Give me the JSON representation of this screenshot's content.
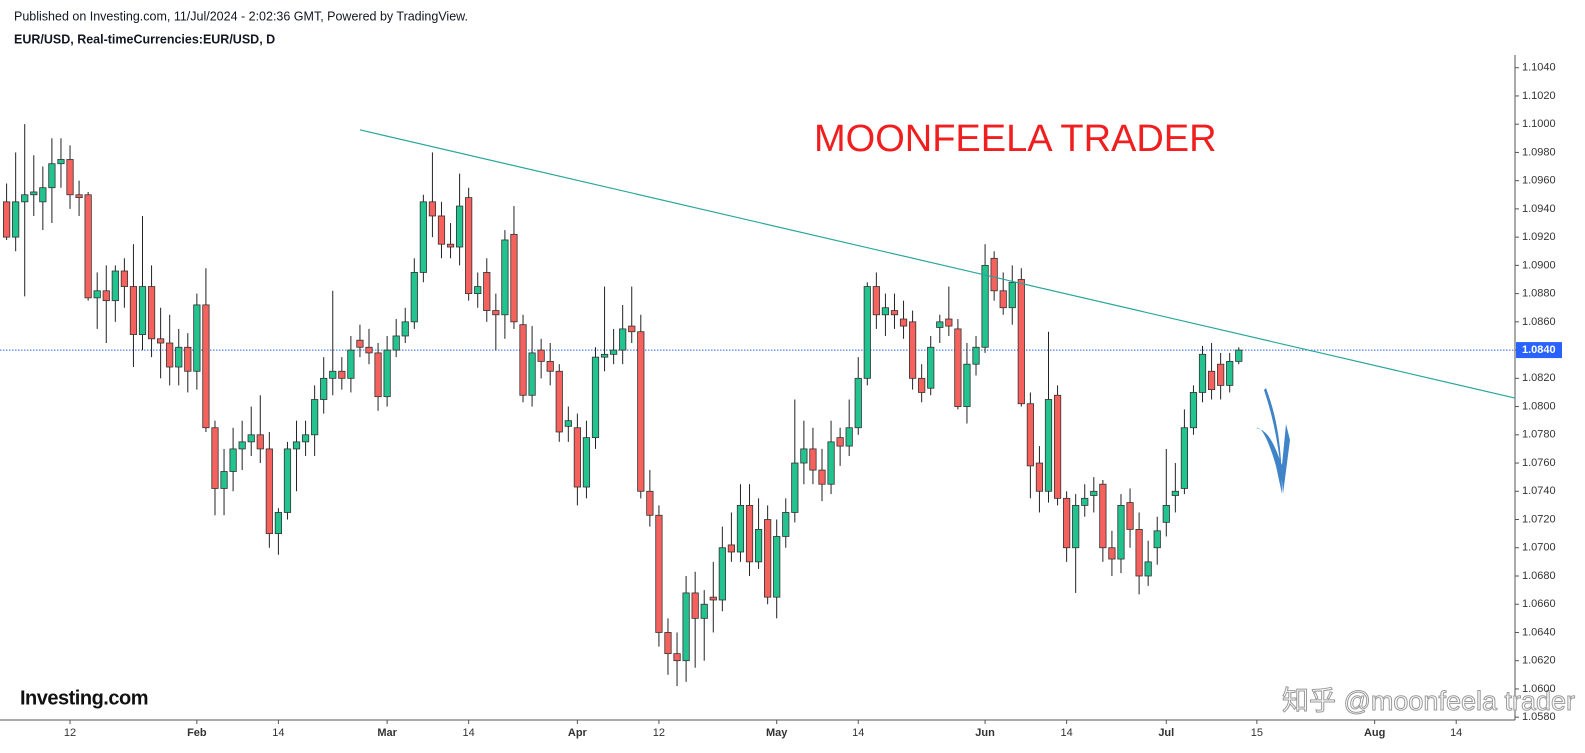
{
  "header": {
    "published": "Published on Investing.com, 11/Jul/2024 - 2:02:36 GMT, Powered by TradingView.",
    "symbol": "EUR/USD, Real-timeCurrencies:EUR/USD, D"
  },
  "chart_data": {
    "type": "candlestick",
    "annotation": "MOONFEELA TRADER",
    "logo": "Investing.com",
    "watermark": "知乎 @moonfeela trader",
    "up_color": "#22c38e",
    "down_color": "#f5625d",
    "categories": [
      null,
      null,
      null,
      null,
      null,
      null,
      null,
      "12",
      null,
      null,
      null,
      null,
      null,
      null,
      null,
      null,
      null,
      null,
      null,
      null,
      null,
      "Feb",
      null,
      null,
      null,
      null,
      null,
      null,
      null,
      null,
      "14",
      null,
      null,
      null,
      null,
      null,
      null,
      null,
      null,
      null,
      null,
      null,
      "Mar",
      null,
      null,
      null,
      null,
      null,
      null,
      null,
      null,
      "14",
      null,
      null,
      null,
      null,
      null,
      null,
      null,
      null,
      null,
      null,
      null,
      "Apr",
      null,
      null,
      null,
      null,
      null,
      null,
      null,
      null,
      "12",
      null,
      null,
      null,
      null,
      null,
      null,
      null,
      null,
      null,
      null,
      null,
      null,
      "May",
      null,
      null,
      null,
      null,
      null,
      null,
      null,
      null,
      "14",
      null,
      null,
      null,
      null,
      null,
      null,
      null,
      null,
      null,
      null,
      null,
      null,
      null,
      "Jun",
      null,
      null,
      null,
      null,
      null,
      null,
      null,
      null,
      "14",
      null,
      null,
      null,
      null,
      null,
      null,
      null,
      null,
      null,
      null,
      "Jul",
      null,
      null,
      null,
      null,
      null,
      null,
      null,
      null,
      null,
      "15",
      null,
      null,
      null,
      null,
      null,
      null,
      null,
      null,
      null,
      null,
      null,
      null,
      "Aug",
      null,
      null,
      null,
      null,
      null,
      null,
      null,
      null,
      "14",
      null,
      null,
      null,
      null,
      null
    ],
    "open": [
      1.0945,
      1.092,
      1.0945,
      1.095,
      1.0945,
      1.0955,
      1.0972,
      1.0975,
      1.095,
      1.095,
      1.0877,
      1.0882,
      1.0875,
      1.0896,
      1.0885,
      1.0851,
      1.0885,
      1.0848,
      1.0845,
      1.0828,
      1.0842,
      1.0825,
      1.0872,
      1.0785,
      1.0742,
      1.0754,
      1.077,
      1.0775,
      1.078,
      1.077,
      1.071,
      1.0725,
      1.077,
      1.0775,
      1.078,
      1.0805,
      1.082,
      1.0825,
      1.082,
      1.0847,
      1.0842,
      1.0838,
      1.0807,
      1.084,
      1.085,
      1.086,
      1.0895,
      1.0945,
      1.0935,
      1.0915,
      1.0913,
      1.0948,
      1.088,
      1.0895,
      1.0868,
      1.0865,
      1.0922,
      1.0858,
      1.0808,
      1.084,
      1.0832,
      1.0825,
      1.0786,
      1.0785,
      1.0743,
      1.0778,
      1.0835,
      1.0837,
      1.084,
      1.0857,
      1.0853,
      1.074,
      1.0723,
      1.064,
      1.0625,
      1.062,
      1.0668,
      1.065,
      1.0665,
      1.0663,
      1.0702,
      1.0697,
      1.073,
      1.069,
      1.072,
      1.0665,
      1.0708,
      1.0725,
      1.076,
      1.077,
      1.0755,
      1.0745,
      1.0778,
      1.0772,
      1.0785,
      1.082,
      1.0885,
      1.0865,
      1.0868,
      1.0862,
      1.086,
      1.082,
      1.0813,
      1.0856,
      1.0862,
      1.0855,
      1.08,
      1.083,
      1.0842,
      1.0905,
      1.0882,
      1.087,
      1.089,
      1.0802,
      1.076,
      1.074,
      1.0808,
      1.0735,
      1.07,
      1.073,
      1.0737,
      1.0745,
      1.07,
      1.0692,
      1.0732,
      1.0713,
      1.068,
      1.07,
      1.0718,
      1.0737,
      1.0742,
      1.0785,
      1.081,
      1.0825,
      1.083,
      1.0815,
      1.0832,
      null,
      null,
      null,
      null,
      null,
      null,
      null,
      null,
      null,
      null,
      null,
      null,
      null,
      null,
      null,
      null,
      null,
      null,
      null,
      null,
      null,
      null,
      null,
      null,
      null,
      null,
      null,
      null,
      null
    ],
    "high": [
      1.0958,
      1.098,
      1.1,
      1.0978,
      1.097,
      1.099,
      1.099,
      1.0985,
      1.096,
      1.0952,
      1.0895,
      1.09,
      1.09,
      1.0905,
      1.0915,
      1.0935,
      1.09,
      1.087,
      1.0865,
      1.0855,
      1.0852,
      1.088,
      1.0898,
      1.079,
      1.077,
      1.0785,
      1.079,
      1.08,
      1.0808,
      1.0782,
      1.0728,
      1.0775,
      1.079,
      1.079,
      1.0815,
      1.0835,
      1.0882,
      1.0835,
      1.085,
      1.0858,
      1.0855,
      1.0845,
      1.085,
      1.0862,
      1.087,
      1.0905,
      1.095,
      1.098,
      1.0945,
      1.093,
      1.0965,
      1.0955,
      1.0895,
      1.0905,
      1.088,
      1.0925,
      1.0942,
      1.0865,
      1.0857,
      1.0848,
      1.0845,
      1.083,
      1.08,
      1.0795,
      1.079,
      1.0842,
      1.0885,
      1.0855,
      1.0872,
      1.0885,
      1.0865,
      1.0755,
      1.073,
      1.065,
      1.064,
      1.068,
      1.0683,
      1.067,
      1.069,
      1.0715,
      1.0725,
      1.0745,
      1.0745,
      1.0735,
      1.073,
      1.072,
      1.0735,
      1.0805,
      1.079,
      1.0785,
      1.077,
      1.079,
      1.0785,
      1.0805,
      1.0835,
      1.0888,
      1.0895,
      1.088,
      1.088,
      1.0875,
      1.0868,
      1.083,
      1.085,
      1.0865,
      1.0885,
      1.0862,
      1.0845,
      1.085,
      1.0915,
      1.091,
      1.0895,
      1.09,
      1.0898,
      1.081,
      1.0772,
      1.0853,
      1.0815,
      1.074,
      1.0738,
      1.0745,
      1.075,
      1.0748,
      1.0712,
      1.0738,
      1.0742,
      1.0725,
      1.0705,
      1.0722,
      1.077,
      1.076,
      1.0798,
      1.0815,
      1.0843,
      1.0845,
      1.0838,
      1.0838,
      1.0842,
      null,
      null,
      null,
      null,
      null,
      null,
      null,
      null,
      null,
      null,
      null,
      null,
      null,
      null,
      null,
      null,
      null,
      null,
      null,
      null,
      null,
      null,
      null,
      null,
      null,
      null,
      null,
      null,
      null
    ],
    "low": [
      1.0918,
      1.091,
      1.0878,
      1.0935,
      1.0925,
      1.093,
      1.0955,
      1.094,
      1.0935,
      1.0875,
      1.0855,
      1.0845,
      1.086,
      1.087,
      1.0828,
      1.084,
      1.0835,
      1.082,
      1.0815,
      1.0815,
      1.081,
      1.0812,
      1.0782,
      1.0723,
      1.0723,
      1.074,
      1.0755,
      1.0765,
      1.076,
      1.07,
      1.0695,
      1.072,
      1.074,
      1.0765,
      1.0765,
      1.0795,
      1.0808,
      1.0812,
      1.081,
      1.0835,
      1.083,
      1.0797,
      1.08,
      1.0835,
      1.0845,
      1.0855,
      1.0888,
      1.092,
      1.0905,
      1.0905,
      1.09,
      1.0875,
      1.087,
      1.086,
      1.084,
      1.0848,
      1.0855,
      1.0803,
      1.08,
      1.082,
      1.0815,
      1.0775,
      1.0775,
      1.073,
      1.0735,
      1.077,
      1.0825,
      1.083,
      1.083,
      1.0845,
      1.0735,
      1.0715,
      1.063,
      1.061,
      1.0602,
      1.0605,
      1.0615,
      1.062,
      1.064,
      1.0655,
      1.069,
      1.069,
      1.068,
      1.0685,
      1.066,
      1.065,
      1.07,
      1.0718,
      1.0745,
      1.0745,
      1.0733,
      1.0738,
      1.0758,
      1.0765,
      1.078,
      1.0815,
      1.0855,
      1.085,
      1.0855,
      1.0848,
      1.0812,
      1.0803,
      1.0808,
      1.0845,
      1.085,
      1.0798,
      1.0788,
      1.0822,
      1.0838,
      1.0875,
      1.0865,
      1.0858,
      1.08,
      1.0735,
      1.0725,
      1.0732,
      1.073,
      1.069,
      1.0668,
      1.0722,
      1.0725,
      1.069,
      1.068,
      1.0682,
      1.07,
      1.0667,
      1.0673,
      1.0688,
      1.0708,
      1.0725,
      1.0738,
      1.078,
      1.0803,
      1.0805,
      1.0805,
      1.081,
      1.083,
      null,
      null,
      null,
      null,
      null,
      null,
      null,
      null,
      null,
      null,
      null,
      null,
      null,
      null,
      null,
      null,
      null,
      null,
      null,
      null,
      null,
      null,
      null,
      null,
      null,
      null,
      null,
      null,
      null
    ],
    "close": [
      1.092,
      1.0945,
      1.095,
      1.0952,
      1.0955,
      1.0972,
      1.0975,
      1.095,
      1.0948,
      1.0877,
      1.0882,
      1.0875,
      1.0896,
      1.0885,
      1.0851,
      1.0885,
      1.0848,
      1.0845,
      1.0828,
      1.0842,
      1.0825,
      1.0872,
      1.0785,
      1.0742,
      1.0754,
      1.077,
      1.0775,
      1.078,
      1.077,
      1.071,
      1.0725,
      1.077,
      1.0775,
      1.078,
      1.0805,
      1.082,
      1.0825,
      1.082,
      1.084,
      1.0842,
      1.0838,
      1.0807,
      1.084,
      1.085,
      1.086,
      1.0895,
      1.0945,
      1.0935,
      1.0915,
      1.0913,
      1.0942,
      1.088,
      1.0885,
      1.0868,
      1.0865,
      1.0918,
      1.086,
      1.0808,
      1.0838,
      1.0832,
      1.0825,
      1.0782,
      1.079,
      1.0743,
      1.0778,
      1.0835,
      1.0837,
      1.084,
      1.0855,
      1.0853,
      1.074,
      1.0723,
      1.064,
      1.0625,
      1.062,
      1.0668,
      1.065,
      1.066,
      1.0663,
      1.07,
      1.0697,
      1.073,
      1.069,
      1.0713,
      1.0665,
      1.0708,
      1.0725,
      1.076,
      1.077,
      1.0755,
      1.0745,
      1.0775,
      1.0772,
      1.0785,
      1.082,
      1.0885,
      1.0865,
      1.087,
      1.0865,
      1.0857,
      1.082,
      1.081,
      1.0842,
      1.086,
      1.0857,
      1.08,
      1.083,
      1.0842,
      1.09,
      1.0882,
      1.087,
      1.0888,
      1.0802,
      1.0758,
      1.074,
      1.0805,
      1.0735,
      1.07,
      1.073,
      1.0735,
      1.074,
      1.07,
      1.0692,
      1.073,
      1.0713,
      1.068,
      1.069,
      1.0712,
      1.073,
      1.074,
      1.0785,
      1.081,
      1.0837,
      1.0812,
      1.0815,
      1.0832,
      1.084,
      null,
      null,
      null,
      null,
      null,
      null,
      null,
      null,
      null,
      null,
      null,
      null,
      null,
      null,
      null,
      null,
      null,
      null,
      null,
      null,
      null,
      null,
      null,
      null,
      null,
      null,
      null,
      null,
      null
    ],
    "current_price": {
      "value": 1.084,
      "label": "1.0840",
      "color": "#2962ff"
    },
    "trendline": {
      "x": [
        39,
        166.5
      ],
      "y": [
        1.0996,
        1.0806
      ],
      "color": "#26a69a"
    },
    "ylim": [
      1.0578,
      1.1049
    ],
    "yticks": [
      {
        "value": 1.058,
        "label": "1.0580"
      },
      {
        "value": 1.06,
        "label": "1.0600"
      },
      {
        "value": 1.062,
        "label": "1.0620"
      },
      {
        "value": 1.064,
        "label": "1.0640"
      },
      {
        "value": 1.066,
        "label": "1.0660"
      },
      {
        "value": 1.068,
        "label": "1.0680"
      },
      {
        "value": 1.07,
        "label": "1.0700"
      },
      {
        "value": 1.072,
        "label": "1.0720"
      },
      {
        "value": 1.074,
        "label": "1.0740"
      },
      {
        "value": 1.076,
        "label": "1.0760"
      },
      {
        "value": 1.078,
        "label": "1.0780"
      },
      {
        "value": 1.08,
        "label": "1.0800"
      },
      {
        "value": 1.082,
        "label": "1.0820"
      },
      {
        "value": 1.084,
        "label": "1.0840"
      },
      {
        "value": 1.086,
        "label": "1.0860"
      },
      {
        "value": 1.088,
        "label": "1.0880"
      },
      {
        "value": 1.09,
        "label": "1.0900"
      },
      {
        "value": 1.092,
        "label": "1.0920"
      },
      {
        "value": 1.094,
        "label": "1.0940"
      },
      {
        "value": 1.096,
        "label": "1.0960"
      },
      {
        "value": 1.098,
        "label": "1.0980"
      },
      {
        "value": 1.1,
        "label": "1.1000"
      },
      {
        "value": 1.102,
        "label": "1.1020"
      },
      {
        "value": 1.104,
        "label": "1.1040"
      }
    ],
    "grid": false
  }
}
